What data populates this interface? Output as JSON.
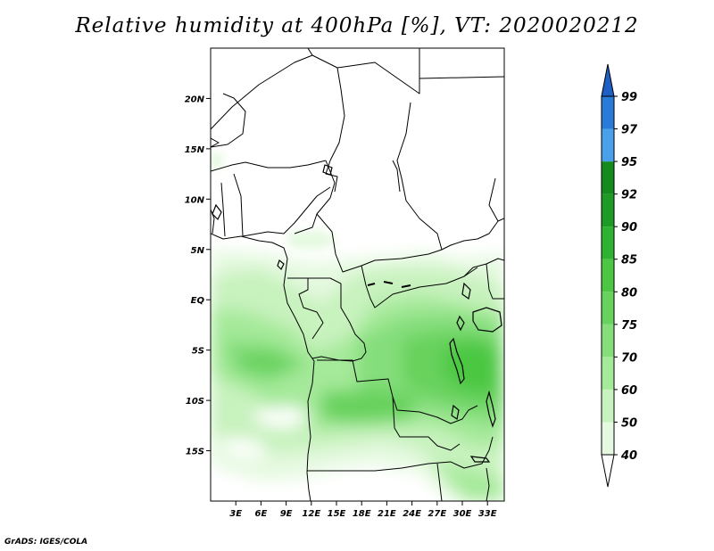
{
  "title": "Relative humidity at 400hPa [%], VT: 2020020212",
  "footer": "GrADS: IGES/COLA",
  "chart_data": {
    "type": "heatmap",
    "variable": "Relative humidity at 400hPa",
    "unit": "%",
    "valid_time": "2020020212",
    "lon_range": [
      0,
      35
    ],
    "lat_range": [
      -20,
      25
    ],
    "x_ticks": [
      "3E",
      "6E",
      "9E",
      "12E",
      "15E",
      "18E",
      "21E",
      "24E",
      "27E",
      "30E",
      "33E"
    ],
    "x_tick_values": [
      3,
      6,
      9,
      12,
      15,
      18,
      21,
      24,
      27,
      30,
      33
    ],
    "y_ticks": [
      "20N",
      "15N",
      "10N",
      "5N",
      "EQ",
      "5S",
      "10S",
      "15S"
    ],
    "y_tick_values": [
      20,
      15,
      10,
      5,
      0,
      -5,
      -10,
      -15
    ],
    "colorbar": {
      "levels": [
        "40",
        "50",
        "60",
        "70",
        "75",
        "80",
        "85",
        "90",
        "92",
        "95",
        "97",
        "99"
      ],
      "colors": [
        "#ffffff",
        "#e5f9e0",
        "#c8f2be",
        "#a5e99a",
        "#85de7b",
        "#67d25d",
        "#4bc743",
        "#2fb232",
        "#1e9a26",
        "#138b1e",
        "#4aa0ea",
        "#2a7ad8",
        "#1e5fc4"
      ]
    },
    "grid": false
  }
}
